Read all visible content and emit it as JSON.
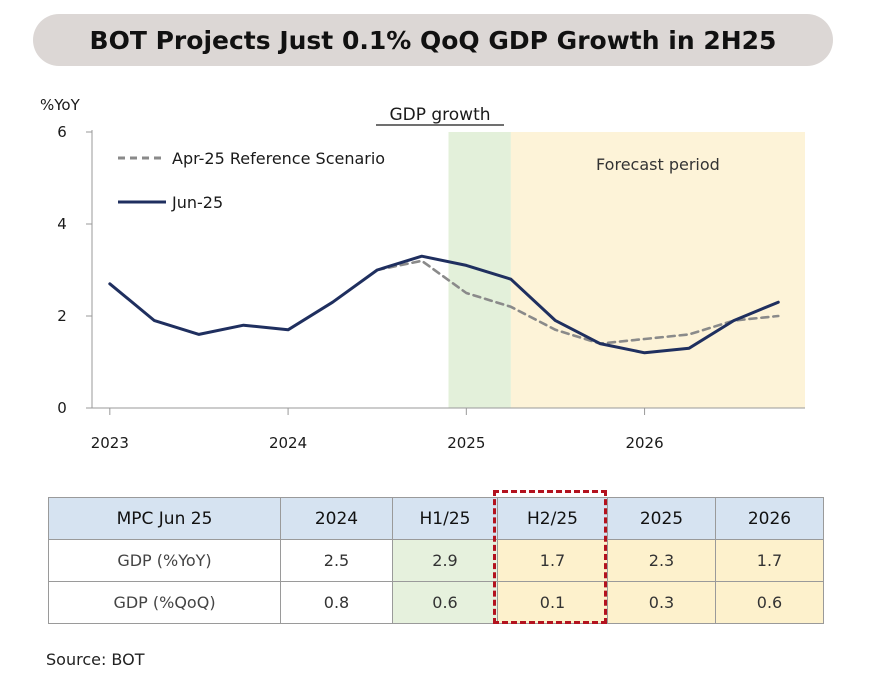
{
  "banner": {
    "title": "BOT Projects Just 0.1% QoQ GDP Growth in 2H25"
  },
  "chart_data": {
    "type": "line",
    "title": "GDP growth",
    "ylabel": "%YoY",
    "ylim": [
      0,
      6
    ],
    "yticks": [
      0,
      2,
      4,
      6
    ],
    "xticks": [
      "2023",
      "2024",
      "2025",
      "2026"
    ],
    "x": [
      2023.0,
      2023.25,
      2023.5,
      2023.75,
      2024.0,
      2024.25,
      2024.5,
      2024.75,
      2025.0,
      2025.25,
      2025.5,
      2025.75,
      2026.0,
      2026.25,
      2026.5,
      2026.75
    ],
    "series": [
      {
        "name": "Apr-25 Reference Scenario",
        "style": "dashed",
        "color": "#8a8a8a",
        "x": [
          2024.5,
          2024.75,
          2025.0,
          2025.25,
          2025.5,
          2025.75,
          2026.0,
          2026.25,
          2026.5,
          2026.75
        ],
        "values": [
          3.0,
          3.2,
          2.5,
          2.2,
          1.7,
          1.4,
          1.5,
          1.6,
          1.9,
          2.0
        ]
      },
      {
        "name": "Jun-25",
        "style": "solid",
        "color": "#1f2f5f",
        "x": [
          2023.0,
          2023.25,
          2023.5,
          2023.75,
          2024.0,
          2024.25,
          2024.5,
          2024.75,
          2025.0,
          2025.25,
          2025.5,
          2025.75,
          2026.0,
          2026.25,
          2026.5,
          2026.75
        ],
        "values": [
          2.7,
          1.9,
          1.6,
          1.8,
          1.7,
          2.3,
          3.0,
          3.3,
          3.1,
          2.8,
          1.9,
          1.4,
          1.2,
          1.3,
          1.9,
          2.3
        ]
      }
    ],
    "shaded_regions": [
      {
        "from": 2024.9,
        "to": 2025.25,
        "color": "#e3f0da",
        "label": ""
      },
      {
        "from": 2025.25,
        "to": 2026.9,
        "color": "#fdf3d8",
        "label": "Forecast period"
      }
    ],
    "legend": "top-left",
    "grid": false
  },
  "table": {
    "headers": [
      "MPC Jun 25",
      "2024",
      "H1/25",
      "H2/25",
      "2025",
      "2026"
    ],
    "rows": [
      {
        "label": "GDP (%YoY)",
        "values": [
          "2.5",
          "2.9",
          "1.7",
          "2.3",
          "1.7"
        ]
      },
      {
        "label": "GDP (%QoQ)",
        "values": [
          "0.8",
          "0.6",
          "0.1",
          "0.3",
          "0.6"
        ]
      }
    ],
    "highlight_column": "H2/25"
  },
  "source": "Source: BOT"
}
